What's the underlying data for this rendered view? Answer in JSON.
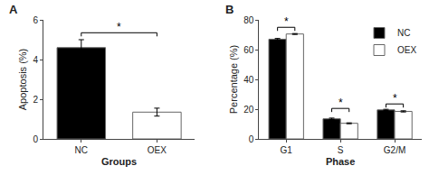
{
  "chart_data": [
    {
      "type": "bar",
      "title": "A",
      "categories": [
        "NC",
        "OEX"
      ],
      "values": [
        4.6,
        1.35
      ],
      "errors": [
        0.4,
        0.2
      ],
      "colors": [
        "#000000",
        "#ffffff"
      ],
      "xlabel": "Groups",
      "ylabel": "Apoptosis (%)",
      "ylim": [
        0,
        6
      ],
      "yticks": [
        0,
        2,
        4,
        6
      ],
      "grid": false,
      "annotations": [
        {
          "text": "*",
          "x": [
            "NC",
            "OEX"
          ],
          "y": 5.35
        }
      ]
    },
    {
      "type": "bar",
      "title": "B",
      "categories": [
        "G1",
        "S",
        "G2/M"
      ],
      "series": [
        {
          "name": "NC",
          "color": "#000000",
          "values": [
            67.0,
            13.5,
            19.5
          ],
          "errors": [
            0.5,
            0.5,
            0.4
          ]
        },
        {
          "name": "OEX",
          "color": "#ffffff",
          "values": [
            70.5,
            10.5,
            18.5
          ],
          "errors": [
            0.3,
            0.3,
            0.4
          ]
        }
      ],
      "xlabel": "Phase",
      "ylabel": "Percentage (%)",
      "ylim": [
        0,
        80
      ],
      "yticks": [
        0,
        20,
        40,
        60,
        80
      ],
      "grid": false,
      "legend": "upper right",
      "annotations": [
        {
          "text": "*",
          "x": "G1",
          "y": 75.0
        },
        {
          "text": "*",
          "x": "S",
          "y": 20.5
        },
        {
          "text": "*",
          "x": "G2/M",
          "y": 23.5
        }
      ]
    }
  ]
}
